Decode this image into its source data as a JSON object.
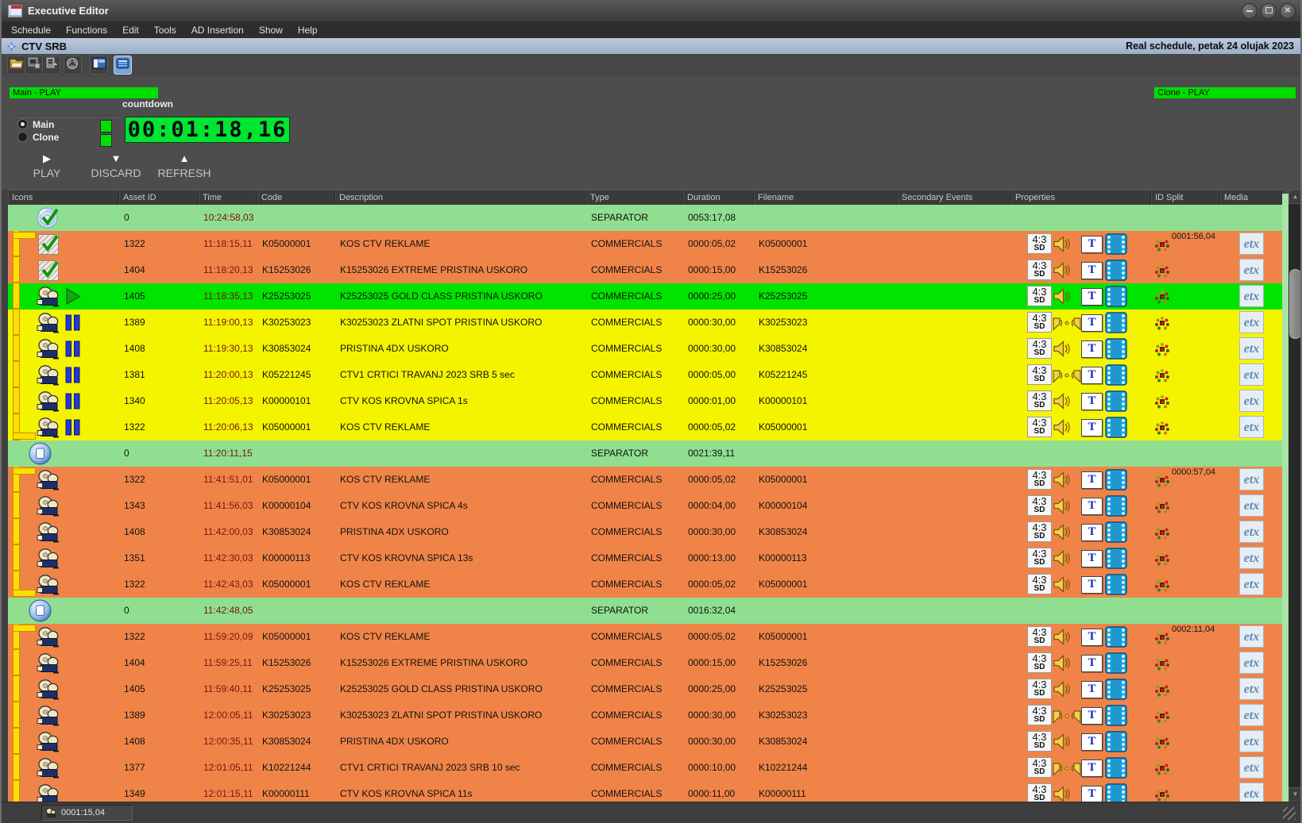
{
  "window": {
    "title": "Executive Editor"
  },
  "menu": [
    "Schedule",
    "Functions",
    "Edit",
    "Tools",
    "AD Insertion",
    "Show",
    "Help"
  ],
  "channel_bar": {
    "title": "CTV SRB",
    "right_text": "Real schedule, petak 24 olujak 2023"
  },
  "toolbar": {
    "buttons": [
      "open-folder-icon",
      "image-export-icon",
      "file-export-icon",
      "reel-settings-icon",
      "layout-panels-icon",
      "schedule-view-icon"
    ],
    "active_button": "schedule-view-icon"
  },
  "transport": {
    "main_play_label": "Main - PLAY",
    "clone_play_label": "Clone - PLAY",
    "countdown_label": "countdown",
    "countdown_value": "00:01:18,16",
    "radio_main_label": "Main",
    "radio_clone_label": "Clone",
    "selected_channel": "Main",
    "play_label": "PLAY",
    "discard_label": "DISCARD",
    "refresh_label": "REFRESH"
  },
  "badges": {
    "aspect_ratio": "4:3",
    "definition": "SD",
    "text_badge": "T",
    "media": "etx"
  },
  "colors": {
    "row_separator": "#90df90",
    "row_orange": "#f08448",
    "row_yellow": "#f4f400",
    "row_playing": "#00e400",
    "play_bar_green": "#00dd00",
    "lcd_green": "#00e432",
    "bracket_yellow": "#ffdf00",
    "time_text": "#7a1212",
    "etx_blue": "#5f8cb8"
  },
  "table": {
    "headers": [
      "Icons",
      "Asset ID",
      "Time",
      "Code",
      "Description",
      "Type",
      "Duration",
      "Filename",
      "Secondary Events",
      "Properties",
      "ID Split",
      "Media"
    ],
    "rows": [
      {
        "kind": "separator",
        "state": "sep-first",
        "bracket": "none",
        "asset": "0",
        "time": "10:24:58,03",
        "code": "",
        "description": "",
        "type": "SEPARATOR",
        "duration": "0053:17,08",
        "filename": "",
        "id_split": "",
        "speakers": 0
      },
      {
        "kind": "commercial",
        "state": "played",
        "bracket": "start",
        "asset": "1322",
        "time": "11:18:15,11",
        "code": "K05000001",
        "description": "KOS CTV REKLAME",
        "type": "COMMERCIALS",
        "duration": "0000:05,02",
        "filename": "K05000001",
        "id_split": "0001:56,04",
        "speakers": 1
      },
      {
        "kind": "commercial",
        "state": "played",
        "bracket": "mid",
        "asset": "1404",
        "time": "11:18:20,13",
        "code": "K15253026",
        "description": "K15253026 EXTREME PRISTINA USKORO",
        "type": "COMMERCIALS",
        "duration": "0000:15,00",
        "filename": "K15253026",
        "id_split": "",
        "speakers": 1
      },
      {
        "kind": "commercial",
        "state": "playing",
        "bracket": "mid",
        "asset": "1405",
        "time": "11:18:35,13",
        "code": "K25253025",
        "description": "K25253025 GOLD CLASS PRISTINA USKORO",
        "type": "COMMERCIALS",
        "duration": "0000:25,00",
        "filename": "K25253025",
        "id_split": "",
        "speakers": 1
      },
      {
        "kind": "commercial",
        "state": "cued",
        "bracket": "mid",
        "asset": "1389",
        "time": "11:19:00,13",
        "code": "K30253023",
        "description": "K30253023 ZLATNI SPOT PRISTINA USKORO",
        "type": "COMMERCIALS",
        "duration": "0000:30,00",
        "filename": "K30253023",
        "id_split": "",
        "speakers": 2
      },
      {
        "kind": "commercial",
        "state": "cued",
        "bracket": "mid",
        "asset": "1408",
        "time": "11:19:30,13",
        "code": "K30853024",
        "description": "PRISTINA 4DX USKORO",
        "type": "COMMERCIALS",
        "duration": "0000:30,00",
        "filename": "K30853024",
        "id_split": "",
        "speakers": 1
      },
      {
        "kind": "commercial",
        "state": "cued",
        "bracket": "mid",
        "asset": "1381",
        "time": "11:20:00,13",
        "code": "K05221245",
        "description": "CTV1 CRTICI TRAVANJ 2023 SRB 5 sec",
        "type": "COMMERCIALS",
        "duration": "0000:05,00",
        "filename": "K05221245",
        "id_split": "",
        "speakers": 2
      },
      {
        "kind": "commercial",
        "state": "cued",
        "bracket": "mid",
        "asset": "1340",
        "time": "11:20:05,13",
        "code": "K00000101",
        "description": "CTV KOS KROVNA SPICA 1s",
        "type": "COMMERCIALS",
        "duration": "0000:01,00",
        "filename": "K00000101",
        "id_split": "",
        "speakers": 1
      },
      {
        "kind": "commercial",
        "state": "cued",
        "bracket": "end",
        "asset": "1322",
        "time": "11:20:06,13",
        "code": "K05000001",
        "description": "KOS CTV REKLAME",
        "type": "COMMERCIALS",
        "duration": "0000:05,02",
        "filename": "K05000001",
        "id_split": "",
        "speakers": 1
      },
      {
        "kind": "separator",
        "state": "sep-stop",
        "bracket": "none",
        "asset": "0",
        "time": "11:20:11,15",
        "code": "",
        "description": "",
        "type": "SEPARATOR",
        "duration": "0021:39,11",
        "filename": "",
        "id_split": "",
        "speakers": 0
      },
      {
        "kind": "commercial",
        "state": "future",
        "bracket": "start",
        "asset": "1322",
        "time": "11:41:51,01",
        "code": "K05000001",
        "description": "KOS CTV REKLAME",
        "type": "COMMERCIALS",
        "duration": "0000:05,02",
        "filename": "K05000001",
        "id_split": "0000:57,04",
        "speakers": 1
      },
      {
        "kind": "commercial",
        "state": "future",
        "bracket": "mid",
        "asset": "1343",
        "time": "11:41:56,03",
        "code": "K00000104",
        "description": "CTV KOS KROVNA SPICA 4s",
        "type": "COMMERCIALS",
        "duration": "0000:04,00",
        "filename": "K00000104",
        "id_split": "",
        "speakers": 1
      },
      {
        "kind": "commercial",
        "state": "future",
        "bracket": "mid",
        "asset": "1408",
        "time": "11:42:00,03",
        "code": "K30853024",
        "description": "PRISTINA 4DX USKORO",
        "type": "COMMERCIALS",
        "duration": "0000:30,00",
        "filename": "K30853024",
        "id_split": "",
        "speakers": 1
      },
      {
        "kind": "commercial",
        "state": "future",
        "bracket": "mid",
        "asset": "1351",
        "time": "11:42:30,03",
        "code": "K00000113",
        "description": "CTV KOS KROVNA SPICA 13s",
        "type": "COMMERCIALS",
        "duration": "0000:13,00",
        "filename": "K00000113",
        "id_split": "",
        "speakers": 1
      },
      {
        "kind": "commercial",
        "state": "future",
        "bracket": "end",
        "asset": "1322",
        "time": "11:42:43,03",
        "code": "K05000001",
        "description": "KOS CTV REKLAME",
        "type": "COMMERCIALS",
        "duration": "0000:05,02",
        "filename": "K05000001",
        "id_split": "",
        "speakers": 1
      },
      {
        "kind": "separator",
        "state": "sep-stop",
        "bracket": "none",
        "asset": "0",
        "time": "11:42:48,05",
        "code": "",
        "description": "",
        "type": "SEPARATOR",
        "duration": "0016:32,04",
        "filename": "",
        "id_split": "",
        "speakers": 0
      },
      {
        "kind": "commercial",
        "state": "future",
        "bracket": "start",
        "asset": "1322",
        "time": "11:59:20,09",
        "code": "K05000001",
        "description": "KOS CTV REKLAME",
        "type": "COMMERCIALS",
        "duration": "0000:05,02",
        "filename": "K05000001",
        "id_split": "0002:11,04",
        "speakers": 1
      },
      {
        "kind": "commercial",
        "state": "future",
        "bracket": "mid",
        "asset": "1404",
        "time": "11:59:25,11",
        "code": "K15253026",
        "description": "K15253026 EXTREME PRISTINA USKORO",
        "type": "COMMERCIALS",
        "duration": "0000:15,00",
        "filename": "K15253026",
        "id_split": "",
        "speakers": 1
      },
      {
        "kind": "commercial",
        "state": "future",
        "bracket": "mid",
        "asset": "1405",
        "time": "11:59:40,11",
        "code": "K25253025",
        "description": "K25253025 GOLD CLASS PRISTINA USKORO",
        "type": "COMMERCIALS",
        "duration": "0000:25,00",
        "filename": "K25253025",
        "id_split": "",
        "speakers": 1
      },
      {
        "kind": "commercial",
        "state": "future",
        "bracket": "mid",
        "asset": "1389",
        "time": "12:00:05,11",
        "code": "K30253023",
        "description": "K30253023 ZLATNI SPOT PRISTINA USKORO",
        "type": "COMMERCIALS",
        "duration": "0000:30,00",
        "filename": "K30253023",
        "id_split": "",
        "speakers": 2
      },
      {
        "kind": "commercial",
        "state": "future",
        "bracket": "mid",
        "asset": "1408",
        "time": "12:00:35,11",
        "code": "K30853024",
        "description": "PRISTINA 4DX USKORO",
        "type": "COMMERCIALS",
        "duration": "0000:30,00",
        "filename": "K30853024",
        "id_split": "",
        "speakers": 1
      },
      {
        "kind": "commercial",
        "state": "future",
        "bracket": "mid",
        "asset": "1377",
        "time": "12:01:05,11",
        "code": "K10221244",
        "description": "CTV1 CRTICI TRAVANJ 2023 SRB 10 sec",
        "type": "COMMERCIALS",
        "duration": "0000:10,00",
        "filename": "K10221244",
        "id_split": "",
        "speakers": 2
      },
      {
        "kind": "commercial",
        "state": "future",
        "bracket": "mid",
        "asset": "1349",
        "time": "12:01:15,11",
        "code": "K00000111",
        "description": "CTV KOS KROVNA SPICA 11s",
        "type": "COMMERCIALS",
        "duration": "0000:11,00",
        "filename": "K00000111",
        "id_split": "",
        "speakers": 1
      }
    ]
  },
  "status_bar": {
    "counter": "0001:15,04"
  }
}
